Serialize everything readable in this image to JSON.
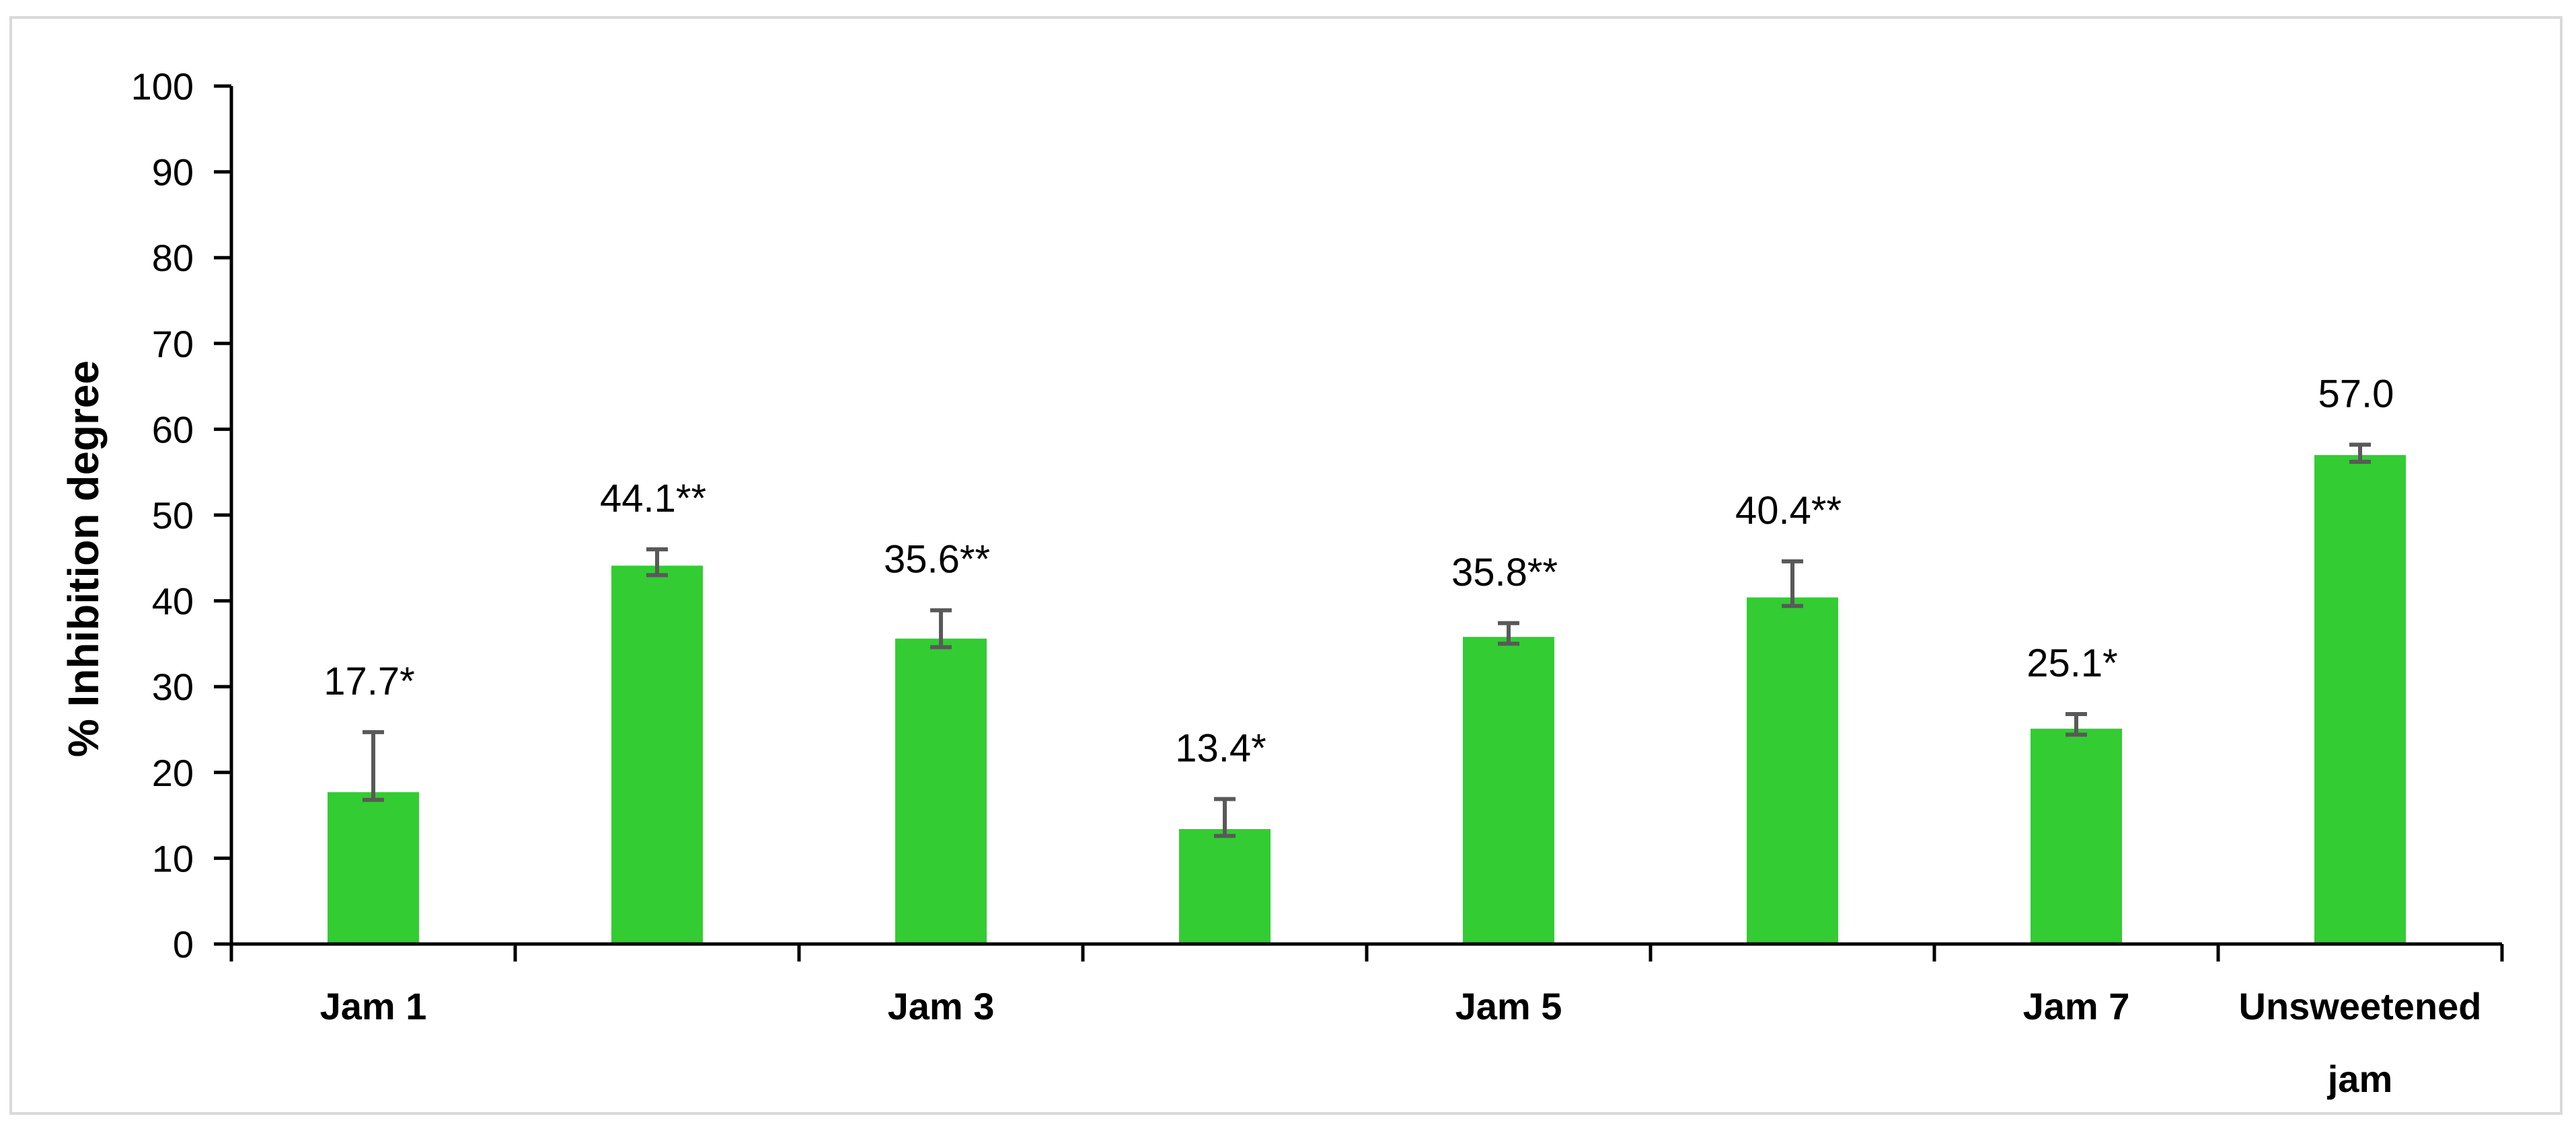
{
  "chart_data": {
    "type": "bar",
    "title": "",
    "xlabel": "",
    "ylabel": "% Inhibition degree",
    "ylim": [
      0,
      100
    ],
    "yticks": [
      0,
      10,
      20,
      30,
      40,
      50,
      60,
      70,
      80,
      90,
      100
    ],
    "categories": [
      "Jam 1",
      "",
      "Jam 3",
      "",
      "Jam 5",
      "",
      "Jam 7",
      "Unsweetened jam"
    ],
    "category_tick_labels": [
      "Jam 1",
      "",
      "Jam 3",
      "",
      "Jam 5",
      "",
      "Jam 7",
      "Unsweetened\njam"
    ],
    "values": [
      17.7,
      44.1,
      35.6,
      13.4,
      35.8,
      40.4,
      25.1,
      57.0
    ],
    "error_high": [
      24.7,
      46.0,
      38.9,
      16.9,
      37.4,
      44.6,
      26.8,
      58.2
    ],
    "error_low": [
      16.8,
      43.0,
      34.6,
      12.6,
      35.0,
      39.4,
      24.4,
      56.2
    ],
    "data_labels": [
      "17.7*",
      "44.1**",
      "35.6**",
      "13.4*",
      "35.8**",
      "40.4**",
      "25.1*",
      "57.0"
    ],
    "grid": false,
    "legend": "none",
    "colors": {
      "bar": "#33cc33",
      "error_bar": "#595959",
      "axis": "#000000",
      "frame": "#d9d9d9"
    }
  }
}
